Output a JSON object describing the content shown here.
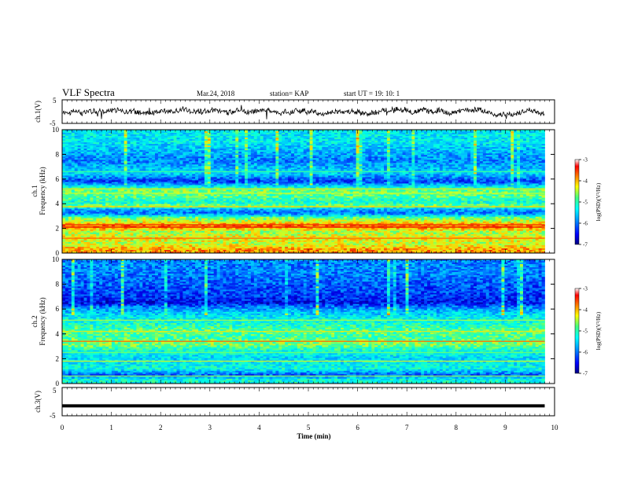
{
  "header": {
    "title": "VLF Spectra",
    "date": "Mar.24, 2018",
    "station": "station= KAP",
    "start_time": "start  UT =   19: 10: 1"
  },
  "colors": {
    "trace": "#000000",
    "colormap": [
      "#000080",
      "#0000ff",
      "#00a0ff",
      "#00ffff",
      "#40ff80",
      "#ffff00",
      "#ff8000",
      "#ff0000",
      "#ffffff"
    ]
  },
  "chart_data": [
    {
      "type": "line",
      "name": "ch1-waveform",
      "ylabel": "ch.1(V)",
      "ylim": [
        -5,
        5
      ],
      "yticks": [
        "5",
        "-5"
      ],
      "xlim": [
        0,
        10
      ]
    },
    {
      "type": "heatmap",
      "name": "ch1-spectrogram",
      "ylabel_lines": [
        "ch.1",
        "Frequency (kHz)"
      ],
      "ylim": [
        0,
        10
      ],
      "yticks": [
        "0",
        "2",
        "4",
        "6",
        "8",
        "10"
      ],
      "xlim": [
        0,
        10
      ],
      "data_xmax": 9.8,
      "colorbar": {
        "ticks": [
          "-3",
          "-4",
          "-5",
          "-6",
          "-7"
        ],
        "label": "log(PSD)(V²/Hz)",
        "range": [
          -7,
          -3
        ]
      },
      "bands": [
        {
          "f": 0.3,
          "v": -3.6
        },
        {
          "f": 0.8,
          "v": -4.2
        },
        {
          "f": 1.2,
          "v": -3.9
        },
        {
          "f": 1.7,
          "v": -4.3
        },
        {
          "f": 2.2,
          "v": -3.3
        },
        {
          "f": 2.5,
          "v": -4.0
        },
        {
          "f": 2.9,
          "v": -4.6
        },
        {
          "f": 3.2,
          "v": -5.9
        },
        {
          "f": 3.6,
          "v": -5.5
        },
        {
          "f": 3.8,
          "v": -4.4
        },
        {
          "f": 4.1,
          "v": -5.0
        },
        {
          "f": 4.6,
          "v": -4.6
        },
        {
          "f": 5.1,
          "v": -4.5
        },
        {
          "f": 5.3,
          "v": -4.9
        },
        {
          "f": 5.8,
          "v": -6.2
        },
        {
          "f": 6.5,
          "v": -5.3
        },
        {
          "f": 7.5,
          "v": -5.8
        },
        {
          "f": 9.0,
          "v": -5.2
        }
      ],
      "hot_lines": [
        {
          "f": 1.2,
          "v": -3.4
        },
        {
          "f": 2.1,
          "v": -3.1
        },
        {
          "f": 2.3,
          "v": -3.2
        },
        {
          "f": 3.75,
          "v": -3.8
        },
        {
          "f": 4.85,
          "v": -4.2
        },
        {
          "f": 5.2,
          "v": -4.0
        },
        {
          "f": 6.6,
          "v": -4.7
        }
      ]
    },
    {
      "type": "heatmap",
      "name": "ch2-spectrogram",
      "ylabel_lines": [
        "ch.2",
        "Frequency (kHz)"
      ],
      "ylim": [
        0,
        10
      ],
      "yticks": [
        "0",
        "2",
        "4",
        "6",
        "8",
        "10"
      ],
      "xlim": [
        0,
        10
      ],
      "data_xmax": 9.8,
      "colorbar": {
        "ticks": [
          "-3",
          "-4",
          "-5",
          "-6",
          "-7"
        ],
        "label": "log(PSD)(V²/Hz)",
        "range": [
          -7,
          -3
        ]
      },
      "bands": [
        {
          "f": 0.3,
          "v": -5.0
        },
        {
          "f": 0.7,
          "v": -6.0
        },
        {
          "f": 1.2,
          "v": -5.0
        },
        {
          "f": 2.0,
          "v": -5.3
        },
        {
          "f": 2.6,
          "v": -5.0
        },
        {
          "f": 3.2,
          "v": -4.4
        },
        {
          "f": 3.7,
          "v": -4.7
        },
        {
          "f": 4.2,
          "v": -4.6
        },
        {
          "f": 4.8,
          "v": -4.9
        },
        {
          "f": 5.4,
          "v": -5.2
        },
        {
          "f": 6.0,
          "v": -5.6
        },
        {
          "f": 6.5,
          "v": -6.4
        },
        {
          "f": 7.0,
          "v": -6.2
        },
        {
          "f": 8.0,
          "v": -6.0
        },
        {
          "f": 9.0,
          "v": -5.8
        }
      ],
      "hot_lines": [
        {
          "f": 3.4,
          "v": -3.4
        },
        {
          "f": 1.8,
          "v": -4.1
        },
        {
          "f": 4.2,
          "v": -4.0
        },
        {
          "f": 2.5,
          "v": -4.5
        },
        {
          "f": 0.6,
          "v": -4.4
        },
        {
          "f": 5.1,
          "v": -4.3
        }
      ]
    },
    {
      "type": "line",
      "name": "ch3-waveform",
      "ylabel": "ch.3(V)",
      "ylim": [
        -5,
        5
      ],
      "yticks": [
        "5",
        "-5"
      ],
      "xlim": [
        0,
        10
      ],
      "constant_value": -1.5
    }
  ],
  "xaxis": {
    "label": "Time (min)",
    "ticks": [
      "0",
      "1",
      "2",
      "3",
      "4",
      "5",
      "6",
      "7",
      "8",
      "9",
      "10"
    ],
    "range": [
      0,
      10
    ]
  }
}
